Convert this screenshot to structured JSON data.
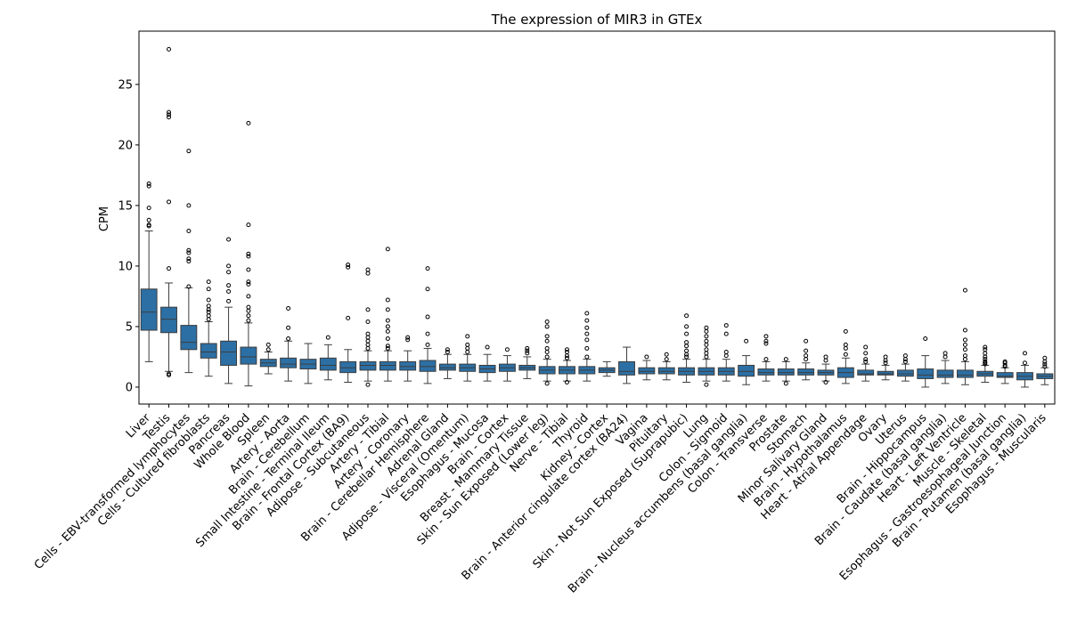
{
  "chart_data": {
    "type": "box",
    "title": "The expression of MIR3 in GTEx",
    "xlabel": "",
    "ylabel": "CPM",
    "ylim": [
      -1.4,
      29.4
    ],
    "yticks": [
      0,
      5,
      10,
      15,
      20,
      25
    ],
    "grid": false,
    "legend": "none",
    "box_color": "#2c6fa4",
    "categories": [
      "Liver",
      "Testis",
      "Cells - EBV-transformed lymphocytes",
      "Cells - Cultured fibroblasts",
      "Pancreas",
      "Whole Blood",
      "Spleen",
      "Artery - Aorta",
      "Brain - Cerebellum",
      "Small Intestine - Terminal Ileum",
      "Brain - Frontal Cortex (BA9)",
      "Adipose - Subcutaneous",
      "Artery - Tibial",
      "Artery - Coronary",
      "Brain - Cerebellar Hemisphere",
      "Adrenal Gland",
      "Adipose - Visceral (Omentum)",
      "Esophagus - Mucosa",
      "Brain - Cortex",
      "Breast - Mammary Tissue",
      "Skin - Sun Exposed (Lower leg)",
      "Nerve - Tibial",
      "Thyroid",
      "Kidney - Cortex",
      "Brain - Anterior cingulate cortex (BA24)",
      "Vagina",
      "Pituitary",
      "Skin - Not Sun Exposed (Suprapubic)",
      "Lung",
      "Colon - Sigmoid",
      "Brain - Nucleus accumbens (basal ganglia)",
      "Colon - Transverse",
      "Prostate",
      "Stomach",
      "Minor Salivary Gland",
      "Brain - Hypothalamus",
      "Heart - Atrial Appendage",
      "Ovary",
      "Uterus",
      "Brain - Hippocampus",
      "Brain - Caudate (basal ganglia)",
      "Heart - Left Ventricle",
      "Muscle - Skeletal",
      "Esophagus - Gastroesophageal Junction",
      "Brain - Putamen (basal ganglia)",
      "Esophagus - Muscularis"
    ],
    "boxes": [
      {
        "q1": 4.7,
        "median": 6.2,
        "q3": 8.1,
        "whislo": 2.1,
        "whishi": 12.9,
        "fliers": [
          13.3,
          13.4,
          13.8,
          14.8,
          16.6,
          16.8
        ]
      },
      {
        "q1": 4.5,
        "median": 5.6,
        "q3": 6.6,
        "whislo": 1.3,
        "whishi": 8.6,
        "fliers": [
          1.0,
          1.1,
          9.8,
          15.3,
          22.3,
          22.5,
          22.7,
          27.9
        ]
      },
      {
        "q1": 3.1,
        "median": 3.7,
        "q3": 5.1,
        "whislo": 1.2,
        "whishi": 8.2,
        "fliers": [
          8.3,
          10.4,
          10.6,
          11.1,
          11.3,
          12.9,
          15.0,
          19.5
        ]
      },
      {
        "q1": 2.4,
        "median": 2.9,
        "q3": 3.6,
        "whislo": 0.9,
        "whishi": 5.4,
        "fliers": [
          5.6,
          5.9,
          6.2,
          6.4,
          6.7,
          7.2,
          8.1,
          8.7
        ]
      },
      {
        "q1": 1.8,
        "median": 2.9,
        "q3": 3.8,
        "whislo": 0.3,
        "whishi": 6.6,
        "fliers": [
          7.1,
          7.9,
          8.4,
          9.5,
          10.0,
          12.2
        ]
      },
      {
        "q1": 1.9,
        "median": 2.5,
        "q3": 3.3,
        "whislo": 0.1,
        "whishi": 5.3,
        "fliers": [
          5.5,
          5.9,
          6.3,
          6.6,
          7.5,
          8.5,
          8.7,
          9.7,
          10.8,
          11.0,
          13.4,
          21.8
        ]
      },
      {
        "q1": 1.7,
        "median": 2.0,
        "q3": 2.3,
        "whislo": 1.1,
        "whishi": 2.9,
        "fliers": [
          3.1,
          3.5
        ]
      },
      {
        "q1": 1.6,
        "median": 1.9,
        "q3": 2.4,
        "whislo": 0.5,
        "whishi": 3.8,
        "fliers": [
          4.0,
          4.9,
          6.5
        ]
      },
      {
        "q1": 1.5,
        "median": 1.9,
        "q3": 2.3,
        "whislo": 0.3,
        "whishi": 3.6,
        "fliers": []
      },
      {
        "q1": 1.4,
        "median": 1.8,
        "q3": 2.4,
        "whislo": 0.6,
        "whishi": 3.5,
        "fliers": [
          4.1
        ]
      },
      {
        "q1": 1.2,
        "median": 1.6,
        "q3": 2.1,
        "whislo": 0.4,
        "whishi": 3.1,
        "fliers": [
          5.7,
          9.9,
          10.1
        ]
      },
      {
        "q1": 1.4,
        "median": 1.8,
        "q3": 2.1,
        "whislo": 0.5,
        "whishi": 3.0,
        "fliers": [
          0.2,
          3.2,
          3.5,
          3.8,
          4.1,
          4.4,
          5.4,
          6.4,
          9.4,
          9.7
        ]
      },
      {
        "q1": 1.4,
        "median": 1.8,
        "q3": 2.1,
        "whislo": 0.5,
        "whishi": 3.0,
        "fliers": [
          3.2,
          3.4,
          4.0,
          4.6,
          5.0,
          5.5,
          6.4,
          7.2,
          11.4
        ]
      },
      {
        "q1": 1.4,
        "median": 1.7,
        "q3": 2.1,
        "whislo": 0.5,
        "whishi": 3.0,
        "fliers": [
          3.9,
          4.1
        ]
      },
      {
        "q1": 1.3,
        "median": 1.7,
        "q3": 2.2,
        "whislo": 0.3,
        "whishi": 3.2,
        "fliers": [
          3.5,
          4.4,
          5.8,
          8.1,
          9.8
        ]
      },
      {
        "q1": 1.4,
        "median": 1.6,
        "q3": 1.9,
        "whislo": 0.7,
        "whishi": 2.7,
        "fliers": [
          2.9,
          3.1
        ]
      },
      {
        "q1": 1.3,
        "median": 1.6,
        "q3": 1.9,
        "whislo": 0.5,
        "whishi": 2.7,
        "fliers": [
          2.9,
          3.2,
          3.5,
          4.2
        ]
      },
      {
        "q1": 1.2,
        "median": 1.5,
        "q3": 1.8,
        "whislo": 0.5,
        "whishi": 2.7,
        "fliers": [
          3.3
        ]
      },
      {
        "q1": 1.3,
        "median": 1.6,
        "q3": 1.9,
        "whislo": 0.5,
        "whishi": 2.6,
        "fliers": [
          3.1
        ]
      },
      {
        "q1": 1.4,
        "median": 1.6,
        "q3": 1.8,
        "whislo": 0.7,
        "whishi": 2.5,
        "fliers": [
          2.8,
          3.0,
          3.2
        ]
      },
      {
        "q1": 1.1,
        "median": 1.4,
        "q3": 1.7,
        "whislo": 0.5,
        "whishi": 2.3,
        "fliers": [
          0.3,
          2.5,
          2.9,
          3.2,
          3.8,
          4.2,
          5.0,
          5.4
        ]
      },
      {
        "q1": 1.1,
        "median": 1.4,
        "q3": 1.7,
        "whislo": 0.5,
        "whishi": 2.2,
        "fliers": [
          0.4,
          2.4,
          2.6,
          2.9,
          3.1
        ]
      },
      {
        "q1": 1.1,
        "median": 1.4,
        "q3": 1.7,
        "whislo": 0.5,
        "whishi": 2.3,
        "fliers": [
          2.5,
          3.2,
          3.9,
          4.4,
          4.9,
          5.5,
          6.1
        ]
      },
      {
        "q1": 1.2,
        "median": 1.4,
        "q3": 1.6,
        "whislo": 0.9,
        "whishi": 2.1,
        "fliers": []
      },
      {
        "q1": 1.0,
        "median": 1.3,
        "q3": 2.1,
        "whislo": 0.3,
        "whishi": 3.3,
        "fliers": []
      },
      {
        "q1": 1.1,
        "median": 1.3,
        "q3": 1.6,
        "whislo": 0.6,
        "whishi": 2.2,
        "fliers": [
          2.5
        ]
      },
      {
        "q1": 1.1,
        "median": 1.3,
        "q3": 1.6,
        "whislo": 0.6,
        "whishi": 2.1,
        "fliers": [
          2.3,
          2.7
        ]
      },
      {
        "q1": 1.0,
        "median": 1.3,
        "q3": 1.6,
        "whislo": 0.4,
        "whishi": 2.3,
        "fliers": [
          2.5,
          2.7,
          3.0,
          3.4,
          3.7,
          4.4,
          5.0,
          5.9
        ]
      },
      {
        "q1": 1.0,
        "median": 1.3,
        "q3": 1.6,
        "whislo": 0.5,
        "whishi": 2.3,
        "fliers": [
          0.2,
          2.5,
          2.8,
          3.1,
          3.5,
          3.8,
          4.2,
          4.6,
          4.9
        ]
      },
      {
        "q1": 1.0,
        "median": 1.3,
        "q3": 1.6,
        "whislo": 0.5,
        "whishi": 2.3,
        "fliers": [
          2.6,
          2.9,
          4.4,
          5.1
        ]
      },
      {
        "q1": 0.9,
        "median": 1.3,
        "q3": 1.8,
        "whislo": 0.2,
        "whishi": 2.6,
        "fliers": [
          3.8
        ]
      },
      {
        "q1": 1.0,
        "median": 1.2,
        "q3": 1.5,
        "whislo": 0.5,
        "whishi": 2.1,
        "fliers": [
          2.3,
          3.6,
          3.8,
          4.2
        ]
      },
      {
        "q1": 1.0,
        "median": 1.2,
        "q3": 1.5,
        "whislo": 0.5,
        "whishi": 2.1,
        "fliers": [
          0.3,
          2.3
        ]
      },
      {
        "q1": 1.0,
        "median": 1.2,
        "q3": 1.5,
        "whislo": 0.6,
        "whishi": 2.0,
        "fliers": [
          2.3,
          2.6,
          3.0,
          3.8
        ]
      },
      {
        "q1": 1.0,
        "median": 1.2,
        "q3": 1.4,
        "whislo": 0.5,
        "whishi": 1.9,
        "fliers": [
          0.4,
          2.2,
          2.5
        ]
      },
      {
        "q1": 0.8,
        "median": 1.2,
        "q3": 1.6,
        "whislo": 0.3,
        "whishi": 2.4,
        "fliers": [
          2.7,
          3.2,
          3.5,
          4.6
        ]
      },
      {
        "q1": 1.0,
        "median": 1.1,
        "q3": 1.4,
        "whislo": 0.5,
        "whishi": 1.9,
        "fliers": [
          2.1,
          2.3,
          2.8,
          3.3
        ]
      },
      {
        "q1": 1.0,
        "median": 1.1,
        "q3": 1.3,
        "whislo": 0.6,
        "whishi": 1.8,
        "fliers": [
          2.0,
          2.2,
          2.5
        ]
      },
      {
        "q1": 0.9,
        "median": 1.1,
        "q3": 1.4,
        "whislo": 0.5,
        "whishi": 1.9,
        "fliers": [
          2.1,
          2.3,
          2.6
        ]
      },
      {
        "q1": 0.7,
        "median": 1.0,
        "q3": 1.5,
        "whislo": 0.0,
        "whishi": 2.6,
        "fliers": [
          4.0
        ]
      },
      {
        "q1": 0.8,
        "median": 1.0,
        "q3": 1.4,
        "whislo": 0.3,
        "whishi": 2.2,
        "fliers": [
          2.5,
          2.8
        ]
      },
      {
        "q1": 0.8,
        "median": 1.0,
        "q3": 1.4,
        "whislo": 0.2,
        "whishi": 2.1,
        "fliers": [
          2.3,
          2.6,
          3.1,
          3.5,
          3.9,
          4.7,
          8.0
        ]
      },
      {
        "q1": 0.9,
        "median": 1.1,
        "q3": 1.3,
        "whislo": 0.4,
        "whishi": 1.8,
        "fliers": [
          1.9,
          2.0,
          2.1,
          2.3,
          2.5,
          2.8,
          3.1,
          3.3
        ]
      },
      {
        "q1": 0.8,
        "median": 0.9,
        "q3": 1.2,
        "whislo": 0.3,
        "whishi": 1.6,
        "fliers": [
          1.7,
          1.8,
          2.0,
          2.1
        ]
      },
      {
        "q1": 0.6,
        "median": 0.9,
        "q3": 1.2,
        "whislo": 0.0,
        "whishi": 1.8,
        "fliers": [
          2.0,
          2.8
        ]
      },
      {
        "q1": 0.7,
        "median": 0.9,
        "q3": 1.1,
        "whislo": 0.2,
        "whishi": 1.6,
        "fliers": [
          1.7,
          1.9,
          2.1,
          2.4
        ]
      }
    ]
  }
}
